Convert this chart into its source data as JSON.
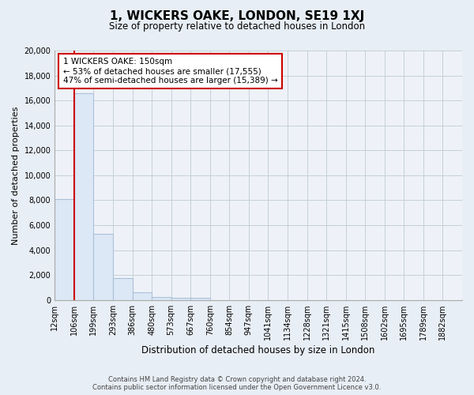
{
  "title": "1, WICKERS OAKE, LONDON, SE19 1XJ",
  "subtitle": "Size of property relative to detached houses in London",
  "xlabel": "Distribution of detached houses by size in London",
  "ylabel": "Number of detached properties",
  "bar_color": "#dce8f5",
  "bar_edge_color": "#aac0d8",
  "property_line_color": "#cc0000",
  "property_bin_index": 1,
  "bin_labels": [
    "12sqm",
    "106sqm",
    "199sqm",
    "293sqm",
    "386sqm",
    "480sqm",
    "573sqm",
    "667sqm",
    "760sqm",
    "854sqm",
    "947sqm",
    "1041sqm",
    "1134sqm",
    "1228sqm",
    "1321sqm",
    "1415sqm",
    "1508sqm",
    "1602sqm",
    "1695sqm",
    "1789sqm",
    "1882sqm"
  ],
  "counts": [
    8100,
    16600,
    5300,
    1750,
    600,
    250,
    175,
    150,
    0,
    0,
    0,
    0,
    0,
    0,
    0,
    0,
    0,
    0,
    0,
    0
  ],
  "ylim": [
    0,
    20000
  ],
  "yticks": [
    0,
    2000,
    4000,
    6000,
    8000,
    10000,
    12000,
    14000,
    16000,
    18000,
    20000
  ],
  "annotation_title": "1 WICKERS OAKE: 150sqm",
  "annotation_line2": "← 53% of detached houses are smaller (17,555)",
  "annotation_line3": "47% of semi-detached houses are larger (15,389) →",
  "footer_line1": "Contains HM Land Registry data © Crown copyright and database right 2024.",
  "footer_line2": "Contains public sector information licensed under the Open Government Licence v3.0.",
  "bg_color": "#e8eef5",
  "plot_bg_color": "#eef2f8",
  "grid_color": "#c5cfd8"
}
